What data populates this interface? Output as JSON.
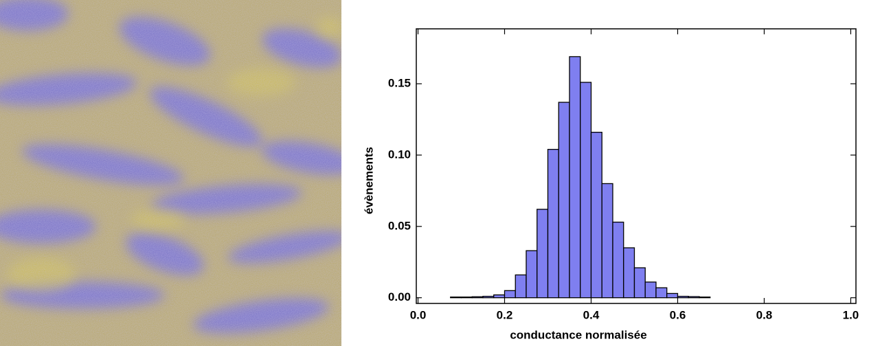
{
  "chart_data": {
    "type": "histogram",
    "xlabel": "conductance normalisée",
    "ylabel": "évènements",
    "bins": [
      0.075,
      0.1,
      0.125,
      0.15,
      0.175,
      0.2,
      0.225,
      0.25,
      0.275,
      0.3,
      0.325,
      0.35,
      0.375,
      0.4,
      0.425,
      0.45,
      0.475,
      0.5,
      0.525,
      0.55,
      0.575,
      0.6,
      0.625,
      0.65,
      0.675
    ],
    "counts": [
      0.0005,
      0.0005,
      0.0007,
      0.001,
      0.002,
      0.005,
      0.016,
      0.033,
      0.062,
      0.104,
      0.137,
      0.169,
      0.151,
      0.116,
      0.08,
      0.053,
      0.035,
      0.021,
      0.011,
      0.007,
      0.003,
      0.001,
      0.0008,
      0.0005
    ],
    "color": "#7f7ff0",
    "xlim": [
      -0.004,
      1.012
    ],
    "ylim": [
      -0.004,
      0.1885
    ],
    "xticks": [
      {
        "value": 0,
        "label": "0.0"
      },
      0.2,
      0.4,
      0.6,
      0.8,
      {
        "value": 1,
        "label": "1.0"
      }
    ],
    "yticks": [
      {
        "value": 0,
        "label": "0.00"
      },
      0.05,
      {
        "value": 0.1,
        "label": "0.10"
      },
      0.15
    ]
  }
}
